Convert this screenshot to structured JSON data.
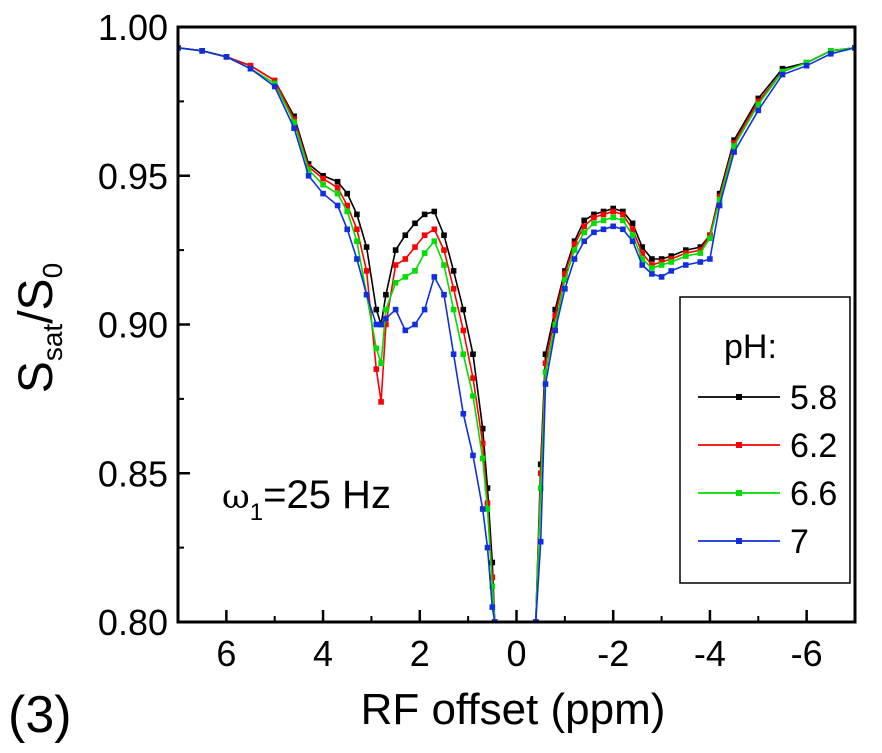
{
  "panel_label": "(3)",
  "chart_data": {
    "type": "line",
    "title": "",
    "xlabel": "RF offset (ppm)",
    "ylabel": {
      "main": "S",
      "sub1": "sat",
      "slash": "/S",
      "sub2": "0"
    },
    "annotation": {
      "omega": "ω",
      "sub": "1",
      "text": "=25 Hz"
    },
    "xlim": [
      7,
      -7
    ],
    "ylim": [
      0.8,
      1.0
    ],
    "xticks": [
      6,
      4,
      2,
      0,
      -2,
      -4,
      -6
    ],
    "xtick_labels": [
      "6",
      "4",
      "2",
      "0",
      "-2",
      "-4",
      "-6"
    ],
    "yticks": [
      0.8,
      0.85,
      0.9,
      0.95,
      1.0
    ],
    "ytick_labels": [
      "0.80",
      "0.85",
      "0.90",
      "0.95",
      "1.00"
    ],
    "legend_title": "pH:",
    "legend_position": "right",
    "series": [
      {
        "name": "5.8",
        "color": "#000000",
        "x": [
          7,
          6.5,
          6,
          5.5,
          5,
          4.6,
          4.3,
          4.0,
          3.7,
          3.5,
          3.3,
          3.1,
          2.9,
          2.8,
          2.7,
          2.5,
          2.3,
          2.1,
          1.9,
          1.7,
          1.5,
          1.3,
          1.1,
          0.9,
          0.7,
          0.6,
          0.5,
          0.45
        ],
        "y": [
          0.993,
          0.992,
          0.99,
          0.987,
          0.982,
          0.97,
          0.954,
          0.95,
          0.948,
          0.944,
          0.937,
          0.926,
          0.905,
          0.9,
          0.91,
          0.925,
          0.93,
          0.934,
          0.937,
          0.938,
          0.93,
          0.918,
          0.905,
          0.89,
          0.865,
          0.845,
          0.82,
          0.8
        ]
      },
      {
        "name": "6.2",
        "color": "#ff0000",
        "x": [
          7,
          6.5,
          6,
          5.5,
          5,
          4.6,
          4.3,
          4.0,
          3.7,
          3.5,
          3.3,
          3.1,
          2.9,
          2.8,
          2.7,
          2.5,
          2.3,
          2.1,
          1.9,
          1.7,
          1.5,
          1.3,
          1.1,
          0.9,
          0.7,
          0.6,
          0.5,
          0.45
        ],
        "y": [
          0.993,
          0.992,
          0.99,
          0.987,
          0.982,
          0.969,
          0.953,
          0.949,
          0.946,
          0.94,
          0.932,
          0.918,
          0.885,
          0.874,
          0.9,
          0.92,
          0.922,
          0.926,
          0.93,
          0.932,
          0.925,
          0.912,
          0.898,
          0.882,
          0.86,
          0.84,
          0.815,
          0.8
        ]
      },
      {
        "name": "6.6",
        "color": "#00dd00",
        "x": [
          7,
          6.5,
          6,
          5.5,
          5,
          4.6,
          4.3,
          4.0,
          3.7,
          3.5,
          3.3,
          3.1,
          2.9,
          2.8,
          2.7,
          2.5,
          2.3,
          2.1,
          1.9,
          1.7,
          1.5,
          1.3,
          1.1,
          0.9,
          0.7,
          0.6,
          0.5,
          0.45
        ],
        "y": [
          0.993,
          0.992,
          0.99,
          0.986,
          0.981,
          0.968,
          0.952,
          0.947,
          0.944,
          0.938,
          0.928,
          0.91,
          0.892,
          0.887,
          0.905,
          0.914,
          0.916,
          0.918,
          0.924,
          0.928,
          0.92,
          0.905,
          0.89,
          0.876,
          0.855,
          0.838,
          0.812,
          0.8
        ]
      },
      {
        "name": "7",
        "color": "#1030e0",
        "x": [
          7,
          6.5,
          6,
          5.5,
          5,
          4.6,
          4.3,
          4.0,
          3.7,
          3.5,
          3.3,
          3.1,
          2.9,
          2.8,
          2.7,
          2.5,
          2.3,
          2.1,
          1.9,
          1.7,
          1.5,
          1.3,
          1.1,
          0.9,
          0.7,
          0.6,
          0.5,
          0.45
        ],
        "y": [
          0.993,
          0.992,
          0.99,
          0.986,
          0.98,
          0.966,
          0.95,
          0.944,
          0.94,
          0.932,
          0.922,
          0.91,
          0.9,
          0.9,
          0.902,
          0.905,
          0.898,
          0.9,
          0.905,
          0.916,
          0.91,
          0.89,
          0.87,
          0.856,
          0.838,
          0.825,
          0.805,
          0.8
        ]
      }
    ],
    "right_series": [
      {
        "name": "5.8",
        "color": "#000000",
        "x": [
          -0.4,
          -0.5,
          -0.6,
          -0.8,
          -1.0,
          -1.2,
          -1.4,
          -1.6,
          -1.8,
          -2.0,
          -2.2,
          -2.4,
          -2.6,
          -2.8,
          -3.0,
          -3.2,
          -3.5,
          -3.8,
          -4.0,
          -4.2,
          -4.5,
          -5.0,
          -5.5,
          -6.0,
          -6.5,
          -7
        ],
        "y": [
          0.8,
          0.853,
          0.89,
          0.905,
          0.918,
          0.928,
          0.935,
          0.937,
          0.938,
          0.939,
          0.938,
          0.934,
          0.926,
          0.922,
          0.922,
          0.923,
          0.925,
          0.926,
          0.93,
          0.944,
          0.962,
          0.976,
          0.986,
          0.988,
          0.992,
          0.993
        ]
      },
      {
        "name": "6.2",
        "color": "#ff0000",
        "x": [
          -0.4,
          -0.5,
          -0.6,
          -0.8,
          -1.0,
          -1.2,
          -1.4,
          -1.6,
          -1.8,
          -2.0,
          -2.2,
          -2.4,
          -2.6,
          -2.8,
          -3.0,
          -3.2,
          -3.5,
          -3.8,
          -4.0,
          -4.2,
          -4.5,
          -5.0,
          -5.5,
          -6.0,
          -6.5,
          -7
        ],
        "y": [
          0.8,
          0.85,
          0.887,
          0.903,
          0.917,
          0.927,
          0.933,
          0.936,
          0.937,
          0.938,
          0.937,
          0.932,
          0.924,
          0.92,
          0.921,
          0.922,
          0.924,
          0.925,
          0.93,
          0.943,
          0.961,
          0.975,
          0.985,
          0.988,
          0.992,
          0.993
        ]
      },
      {
        "name": "6.6",
        "color": "#00dd00",
        "x": [
          -0.4,
          -0.5,
          -0.6,
          -0.8,
          -1.0,
          -1.2,
          -1.4,
          -1.6,
          -1.8,
          -2.0,
          -2.2,
          -2.4,
          -2.6,
          -2.8,
          -3.0,
          -3.2,
          -3.5,
          -3.8,
          -4.0,
          -4.2,
          -4.5,
          -5.0,
          -5.5,
          -6.0,
          -6.5,
          -7
        ],
        "y": [
          0.8,
          0.845,
          0.884,
          0.9,
          0.915,
          0.925,
          0.931,
          0.934,
          0.935,
          0.936,
          0.935,
          0.93,
          0.922,
          0.919,
          0.92,
          0.921,
          0.923,
          0.924,
          0.929,
          0.942,
          0.96,
          0.974,
          0.985,
          0.988,
          0.992,
          0.993
        ]
      },
      {
        "name": "7",
        "color": "#1030e0",
        "x": [
          -0.4,
          -0.5,
          -0.6,
          -0.8,
          -1.0,
          -1.2,
          -1.4,
          -1.6,
          -1.8,
          -2.0,
          -2.2,
          -2.4,
          -2.6,
          -2.8,
          -3.0,
          -3.2,
          -3.5,
          -3.8,
          -4.0,
          -4.2,
          -4.5,
          -5.0,
          -5.5,
          -6.0,
          -6.5,
          -7
        ],
        "y": [
          0.8,
          0.827,
          0.88,
          0.898,
          0.912,
          0.922,
          0.928,
          0.931,
          0.932,
          0.933,
          0.932,
          0.928,
          0.92,
          0.917,
          0.916,
          0.918,
          0.92,
          0.921,
          0.922,
          0.94,
          0.958,
          0.972,
          0.984,
          0.987,
          0.991,
          0.993
        ]
      }
    ]
  }
}
